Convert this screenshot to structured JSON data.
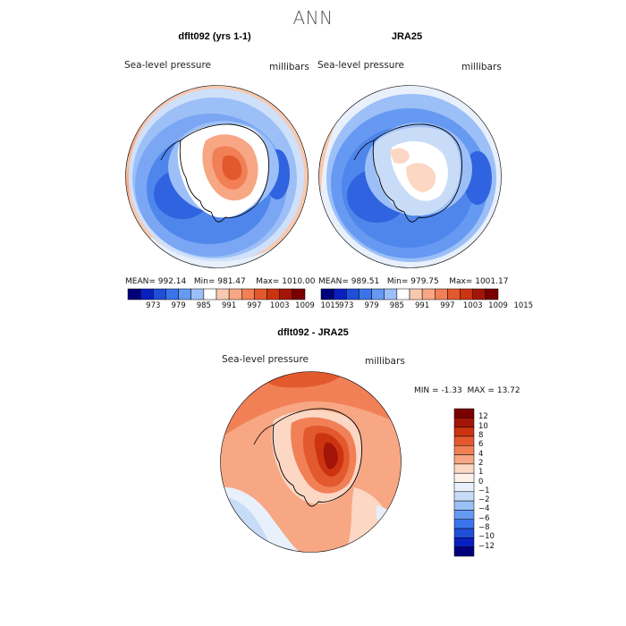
{
  "figure": {
    "title": "ANN",
    "colors": {
      "map_scale": [
        "#00007a",
        "#0a1fbf",
        "#1f4ed8",
        "#3a74ea",
        "#6699f2",
        "#9cbff7",
        "#ffffff",
        "#f7c9b0",
        "#f7a784",
        "#f28057",
        "#e3592e",
        "#cc3311",
        "#a31508",
        "#7a0000"
      ],
      "diff_scale": [
        "#7a0000",
        "#a31508",
        "#cc3311",
        "#e3592e",
        "#f28057",
        "#f7a784",
        "#fbd7c4",
        "#fdf2ea",
        "#e8f0fb",
        "#c8dcf8",
        "#9cbff7",
        "#6699f2",
        "#3a74ea",
        "#1f4ed8",
        "#0a1fbf",
        "#00007a"
      ]
    },
    "panel1": {
      "title": "dflt092 (yrs 1-1)",
      "variable": "Sea-level pressure",
      "units": "millibars",
      "stats": {
        "mean_label": "MEAN=",
        "mean": "992.14",
        "min_label": "Min=",
        "min": "981.47",
        "max_label": "Max=",
        "max": "1010.00"
      }
    },
    "panel2": {
      "title": "JRA25",
      "variable": "Sea-level pressure",
      "units": "millibars",
      "stats": {
        "mean_label": "MEAN=",
        "mean": "989.51",
        "min_label": "Min=",
        "min": "979.75",
        "max_label": "Max=",
        "max": "1001.17"
      }
    },
    "colorbar_top": {
      "ticks": [
        "973",
        "979",
        "985",
        "991",
        "997",
        "1003",
        "1009",
        "1015"
      ]
    },
    "panel3": {
      "title": "dflt092 - JRA25",
      "variable": "Sea-level pressure",
      "units": "millibars",
      "stats": {
        "min_label": "MIN =",
        "min": "-1.33",
        "max_label": "MAX =",
        "max": "13.72"
      }
    },
    "colorbar_diff": {
      "ticks": [
        "12",
        "10",
        "8",
        "6",
        "4",
        "2",
        "1",
        "0",
        "−1",
        "−2",
        "−4",
        "−6",
        "−8",
        "−10",
        "−12"
      ]
    }
  }
}
